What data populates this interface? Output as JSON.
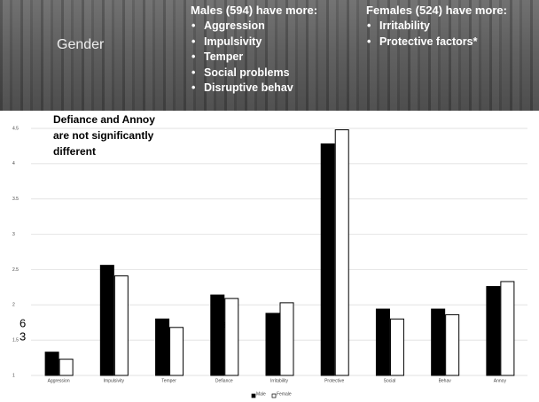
{
  "header": {
    "title": "Gender",
    "males": {
      "heading": "Males (594) have more:",
      "items": [
        "Aggression",
        "Impulsivity",
        "Temper",
        "Social problems",
        "Disruptive behav"
      ]
    },
    "females": {
      "heading": "Females (524) have more:",
      "items": [
        "Irritability",
        "Protective factors*"
      ]
    }
  },
  "chart_data": {
    "type": "bar",
    "annotation": [
      "Defiance and Annoy",
      "are not significantly",
      "different"
    ],
    "stray_labels": [
      "6",
      "3",
      "ns"
    ],
    "categories": [
      "Aggression",
      "Impulsivity",
      "Temper",
      "Defiance",
      "Irritability",
      "Protective",
      "Social",
      "Behav",
      "Annoy"
    ],
    "series": [
      {
        "name": "Male",
        "color": "#000000",
        "values": [
          1.33,
          2.56,
          1.8,
          2.14,
          1.88,
          4.28,
          1.94,
          1.94,
          2.26
        ]
      },
      {
        "name": "Female",
        "color": "#ffffff",
        "values": [
          1.23,
          2.41,
          1.68,
          2.09,
          2.03,
          4.48,
          1.8,
          1.86,
          2.33
        ]
      }
    ],
    "ylim": [
      1,
      4.5
    ],
    "yticks": [
      1,
      1.5,
      2,
      2.5,
      3,
      3.5,
      4,
      4.5
    ],
    "grid": true
  }
}
